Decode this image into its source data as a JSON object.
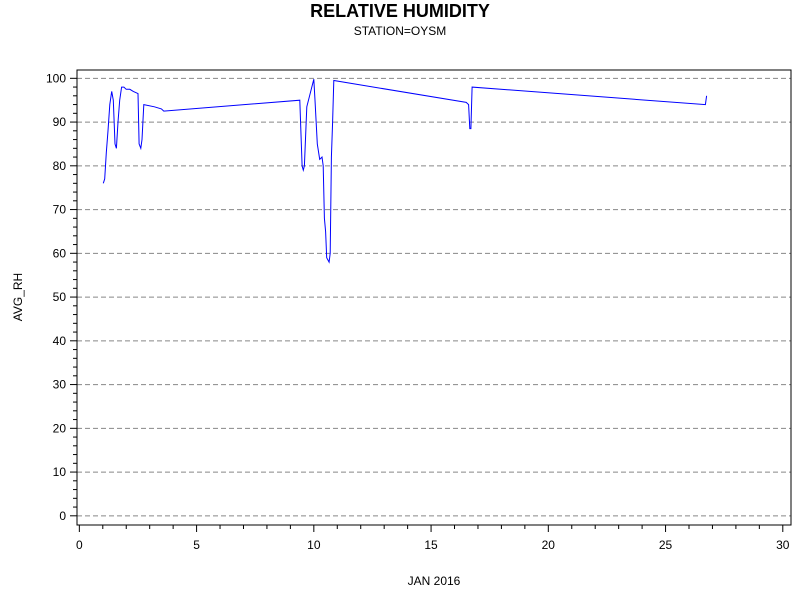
{
  "chart_data": {
    "type": "line",
    "title": "RELATIVE HUMIDITY",
    "subtitle": "STATION=OYSM",
    "xlabel": "JAN 2016",
    "ylabel": "AVG_RH",
    "xlim": [
      -0.1,
      30.35
    ],
    "ylim": [
      -2.1,
      101.9
    ],
    "xticks": [
      0,
      5,
      10,
      15,
      20,
      25,
      30
    ],
    "yticks": [
      0,
      10,
      20,
      30,
      40,
      50,
      60,
      70,
      80,
      90,
      100
    ],
    "grid": "horizontal dashed",
    "series": [
      {
        "color": "#0000ff",
        "x": [
          1.02,
          1.08,
          1.15,
          1.22,
          1.3,
          1.38,
          1.45,
          1.52,
          1.58,
          1.65,
          1.72,
          1.8,
          1.9,
          2.0,
          2.15,
          2.3,
          2.5,
          2.55,
          2.62,
          2.67,
          2.75,
          3.2,
          3.5,
          3.6,
          9.4,
          9.5,
          9.55,
          9.6,
          9.7,
          10.0,
          10.05,
          10.15,
          10.25,
          10.35,
          10.4,
          10.45,
          10.5,
          10.55,
          10.65,
          10.7,
          10.75,
          10.8,
          10.85,
          16.5,
          16.6,
          16.65,
          16.7,
          16.75,
          26.7,
          26.75
        ],
        "y": [
          76,
          77,
          83,
          88,
          94,
          97,
          95,
          85,
          84,
          90,
          95,
          98,
          98,
          97.5,
          97.5,
          97,
          96.5,
          85,
          84,
          86,
          94,
          93.5,
          93,
          92.5,
          95,
          80,
          79,
          80,
          93.5,
          99.8,
          95,
          85,
          81.5,
          82,
          80,
          68,
          65,
          59,
          58,
          60,
          82,
          90,
          99.5,
          94.5,
          94,
          88.5,
          88.5,
          98,
          94,
          96
        ]
      }
    ]
  }
}
